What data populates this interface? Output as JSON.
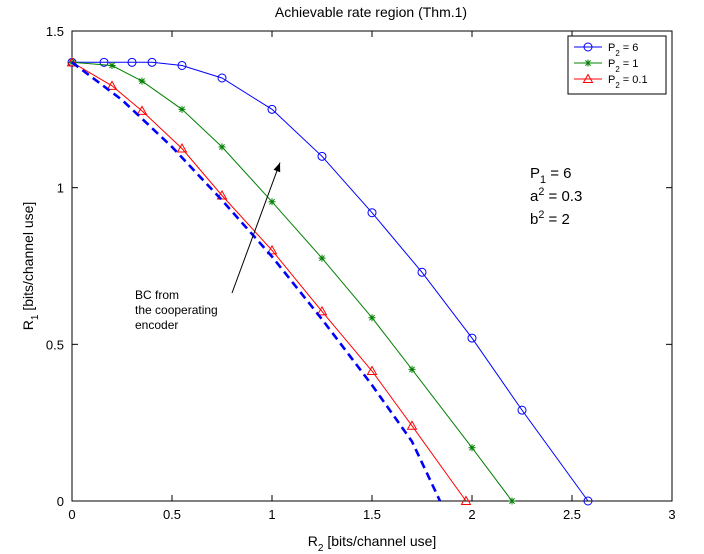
{
  "chart_data": {
    "type": "line",
    "title": "Achievable rate region (Thm.1)",
    "xlabel": {
      "main": "R",
      "sub": "2",
      "rest": " [bits/channel use]"
    },
    "ylabel": {
      "main": "R",
      "sub": "1",
      "rest": " [bits/channel use]"
    },
    "xlim": [
      0,
      3
    ],
    "ylim": [
      0,
      1.5
    ],
    "xticks": [
      0,
      0.5,
      1,
      1.5,
      2,
      2.5,
      3
    ],
    "xtick_labels": [
      "0",
      "0.5",
      "1",
      "1.5",
      "2",
      "2.5",
      "3"
    ],
    "yticks": [
      0,
      0.5,
      1,
      1.5
    ],
    "ytick_labels": [
      "0",
      "0.5",
      "1",
      "1.5"
    ],
    "grid": false,
    "legend_position": "top-right",
    "series": [
      {
        "legend": {
          "main": "P",
          "sub": "2",
          "rest": " = 6"
        },
        "color": "#0000ff",
        "marker": "circle",
        "points": [
          [
            0,
            1.4
          ],
          [
            0.16,
            1.4
          ],
          [
            0.3,
            1.4
          ],
          [
            0.4,
            1.4
          ],
          [
            0.55,
            1.39
          ],
          [
            0.75,
            1.35
          ],
          [
            1.0,
            1.25
          ],
          [
            1.25,
            1.1
          ],
          [
            1.5,
            0.92
          ],
          [
            1.75,
            0.73
          ],
          [
            2.0,
            0.52
          ],
          [
            2.25,
            0.29
          ],
          [
            2.58,
            0.0
          ]
        ]
      },
      {
        "legend": {
          "main": "P",
          "sub": "2",
          "rest": " = 1"
        },
        "color": "#008000",
        "marker": "star",
        "points": [
          [
            0,
            1.4
          ],
          [
            0.2,
            1.39
          ],
          [
            0.35,
            1.34
          ],
          [
            0.55,
            1.25
          ],
          [
            0.75,
            1.13
          ],
          [
            1.0,
            0.955
          ],
          [
            1.25,
            0.775
          ],
          [
            1.5,
            0.585
          ],
          [
            1.7,
            0.42
          ],
          [
            2.0,
            0.17
          ],
          [
            2.2,
            0.0
          ]
        ]
      },
      {
        "legend": {
          "main": "P",
          "sub": "2",
          "rest": " = 0.1"
        },
        "color": "#ff0000",
        "marker": "triangle",
        "points": [
          [
            0,
            1.4
          ],
          [
            0.2,
            1.325
          ],
          [
            0.35,
            1.245
          ],
          [
            0.55,
            1.125
          ],
          [
            0.75,
            0.975
          ],
          [
            1.0,
            0.8
          ],
          [
            1.25,
            0.605
          ],
          [
            1.5,
            0.415
          ],
          [
            1.7,
            0.24
          ],
          [
            1.97,
            0.0
          ]
        ]
      },
      {
        "legend": null,
        "color": "#0000ff",
        "marker": "none",
        "dashed": true,
        "points": [
          [
            0,
            1.4
          ],
          [
            0.25,
            1.28
          ],
          [
            0.5,
            1.13
          ],
          [
            0.75,
            0.96
          ],
          [
            1.0,
            0.78
          ],
          [
            1.25,
            0.58
          ],
          [
            1.5,
            0.37
          ],
          [
            1.7,
            0.19
          ],
          [
            1.84,
            0.0
          ]
        ]
      }
    ],
    "parameter_labels": [
      {
        "main": "P",
        "sup": "",
        "sub": "1",
        "rest": " = 6"
      },
      {
        "main": "a",
        "sup": "2",
        "sub": "",
        "rest": " = 0.3"
      },
      {
        "main": "b",
        "sup": "2",
        "sub": "",
        "rest": " = 2"
      }
    ],
    "annotation": {
      "lines": [
        "BC from",
        "the cooperating",
        "encoder"
      ],
      "arrow_to": [
        1.04,
        1.08
      ]
    }
  }
}
